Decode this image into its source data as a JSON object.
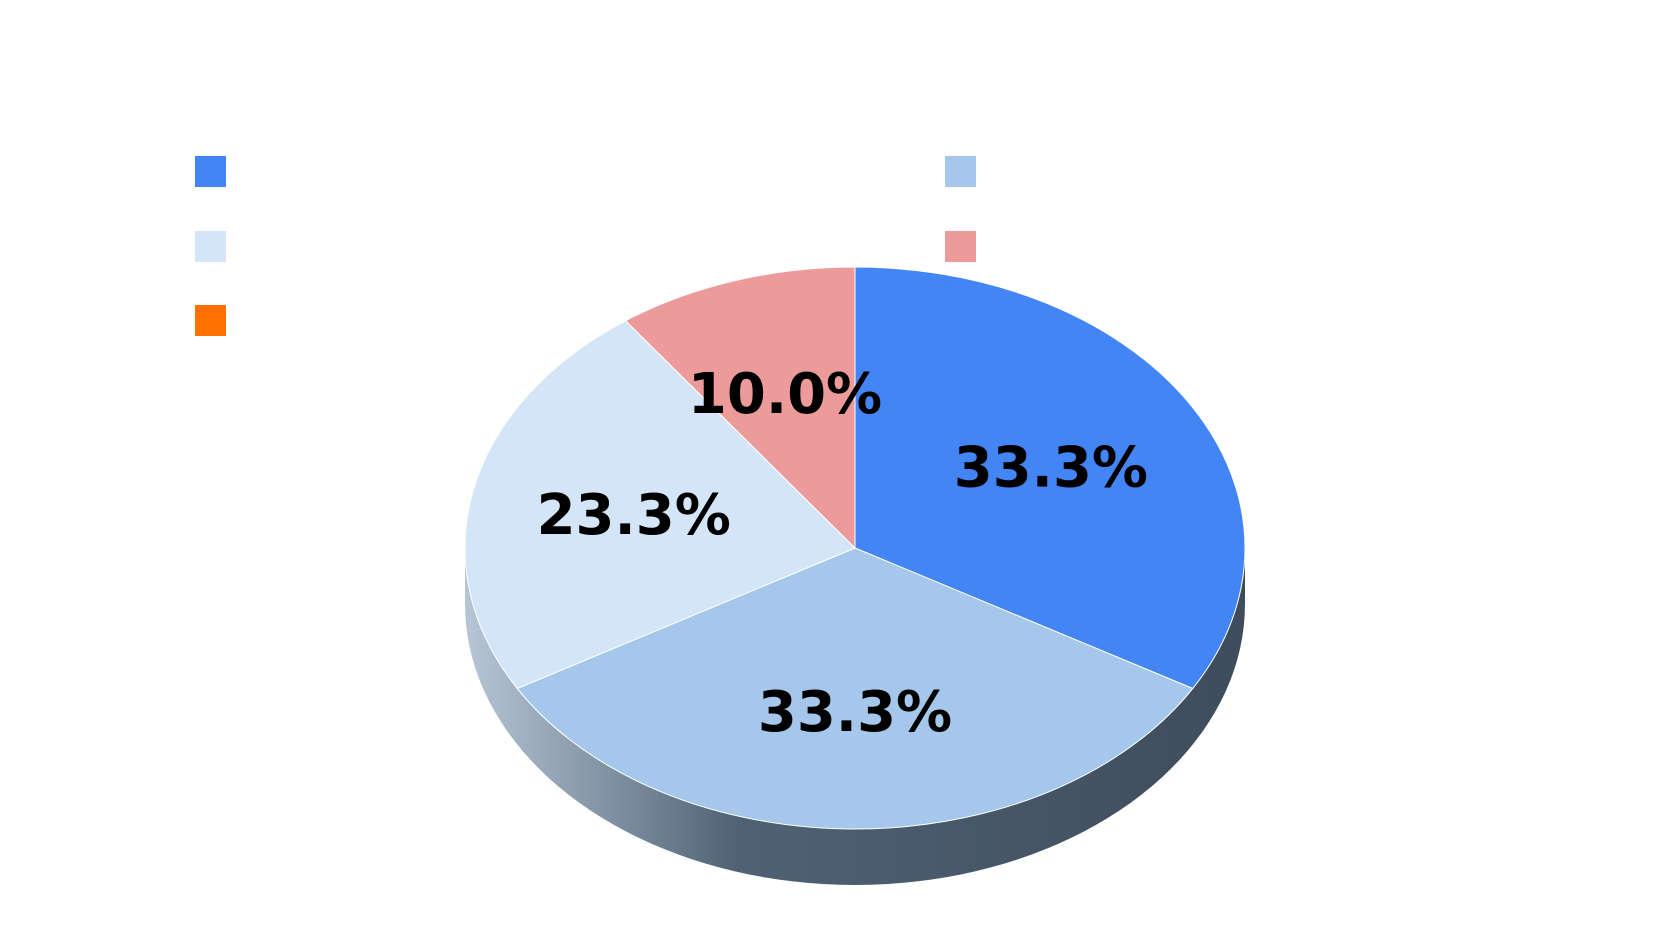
{
  "chart_data": {
    "type": "pie",
    "title": "",
    "slices": [
      {
        "label": "",
        "value": 33.3,
        "percent_label": "33.3%",
        "color": "#4385f5"
      },
      {
        "label": "",
        "value": 33.3,
        "percent_label": "33.3%",
        "color": "#a4c7eb"
      },
      {
        "label": "",
        "value": 23.3,
        "percent_label": "23.3%",
        "color": "#d3e5f6"
      },
      {
        "label": "",
        "value": 10.0,
        "percent_label": "10.0%",
        "color": "#ec9b9a"
      },
      {
        "label": "",
        "value": 0.0,
        "percent_label": "",
        "color": "#ff7000"
      }
    ],
    "legend": {
      "placement": "top",
      "columns": 2
    },
    "style": "3d",
    "side_color": "#3f4f5e"
  }
}
